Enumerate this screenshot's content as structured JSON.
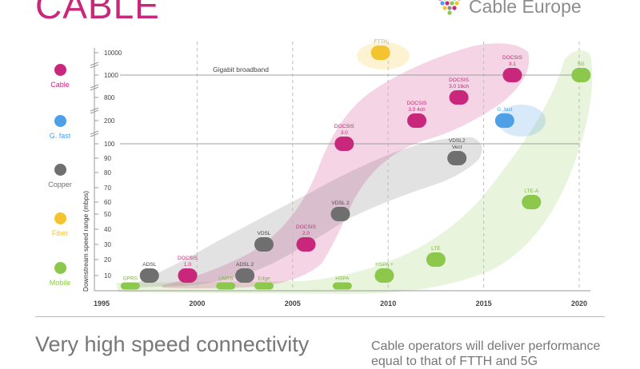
{
  "header": {
    "title": "CABLE",
    "brand": "Cable Europe",
    "brand_icon": "heart-dots-logo"
  },
  "legend": [
    {
      "label": "Cable",
      "color": "#c8277c"
    },
    {
      "label": "G. fast",
      "color": "#4d9fe6"
    },
    {
      "label": "Copper",
      "color": "#6f6f6f"
    },
    {
      "label": "Fiber",
      "color": "#f4c430"
    },
    {
      "label": "Mobile",
      "color": "#8cc84b"
    }
  ],
  "footer": {
    "headline": "Very high speed connectivity",
    "tagline_line1": "Cable operators will deliver performance",
    "tagline_line2": "equal to that of FTTH and 5G"
  },
  "chart_data": {
    "type": "scatter",
    "ylabel": "Downstream speed range (mbps)",
    "x_ticks": [
      "1995",
      "2000",
      "2005",
      "2010",
      "2015",
      "2020"
    ],
    "xlim": [
      1995,
      2020
    ],
    "y_scale": "categorical",
    "y_ticks": [
      "10",
      "20",
      "30",
      "40",
      "50",
      "60",
      "70",
      "80",
      "90",
      "100",
      "200",
      "800",
      "1000",
      "10000"
    ],
    "reference_lines": [
      {
        "y": "1000",
        "label": "Gigabit broadband"
      },
      {
        "y": "100",
        "label": ""
      }
    ],
    "series": [
      {
        "name": "Cable",
        "color": "#c8277c",
        "points": [
          {
            "x": 1999.5,
            "y": "10",
            "label": "DOCSIS 1.0"
          },
          {
            "x": 2005.7,
            "y": "30",
            "label": "DOCSIS 2.0"
          },
          {
            "x": 2007.7,
            "y": "100",
            "label": "DOCSIS 3.0"
          },
          {
            "x": 2011.5,
            "y": "200",
            "label": "DOCSIS 3.0 4ch"
          },
          {
            "x": 2013.7,
            "y": "800",
            "label": "DOCSIS 3.0 16ch"
          },
          {
            "x": 2016.5,
            "y": "1000",
            "label": "DOCSIS 3.1"
          }
        ]
      },
      {
        "name": "G. fast",
        "color": "#4d9fe6",
        "points": [
          {
            "x": 2016.1,
            "y": "200",
            "label": "G. fast"
          }
        ]
      },
      {
        "name": "Copper",
        "color": "#6f6f6f",
        "points": [
          {
            "x": 1997.5,
            "y": "10",
            "label": "ADSL"
          },
          {
            "x": 2002.5,
            "y": "10",
            "label": "ADSL 2"
          },
          {
            "x": 2003.5,
            "y": "30",
            "label": "VDSL"
          },
          {
            "x": 2007.5,
            "y": "50",
            "label": "VDSL 2"
          },
          {
            "x": 2013.6,
            "y": "90",
            "label": "VDSL2 Vect"
          }
        ]
      },
      {
        "name": "Fiber",
        "color": "#f4c430",
        "points": [
          {
            "x": 2009.6,
            "y": "10000",
            "label": "FTTH"
          }
        ]
      },
      {
        "name": "Mobile",
        "color": "#8cc84b",
        "points": [
          {
            "x": 1996.5,
            "y": "GPRS",
            "label": "GPRS"
          },
          {
            "x": 2001.5,
            "y": "UMTS",
            "label": "UMTS"
          },
          {
            "x": 2003.5,
            "y": "Edge",
            "label": "Edge"
          },
          {
            "x": 2007.6,
            "y": "HSPA",
            "label": "HSPA"
          },
          {
            "x": 2009.8,
            "y": "10",
            "label": "HSPA +"
          },
          {
            "x": 2012.5,
            "y": "20",
            "label": "LTE"
          },
          {
            "x": 2017.5,
            "y": "60",
            "label": "LTE-A"
          },
          {
            "x": 2020.1,
            "y": "1000",
            "label": "5G"
          }
        ]
      }
    ]
  }
}
